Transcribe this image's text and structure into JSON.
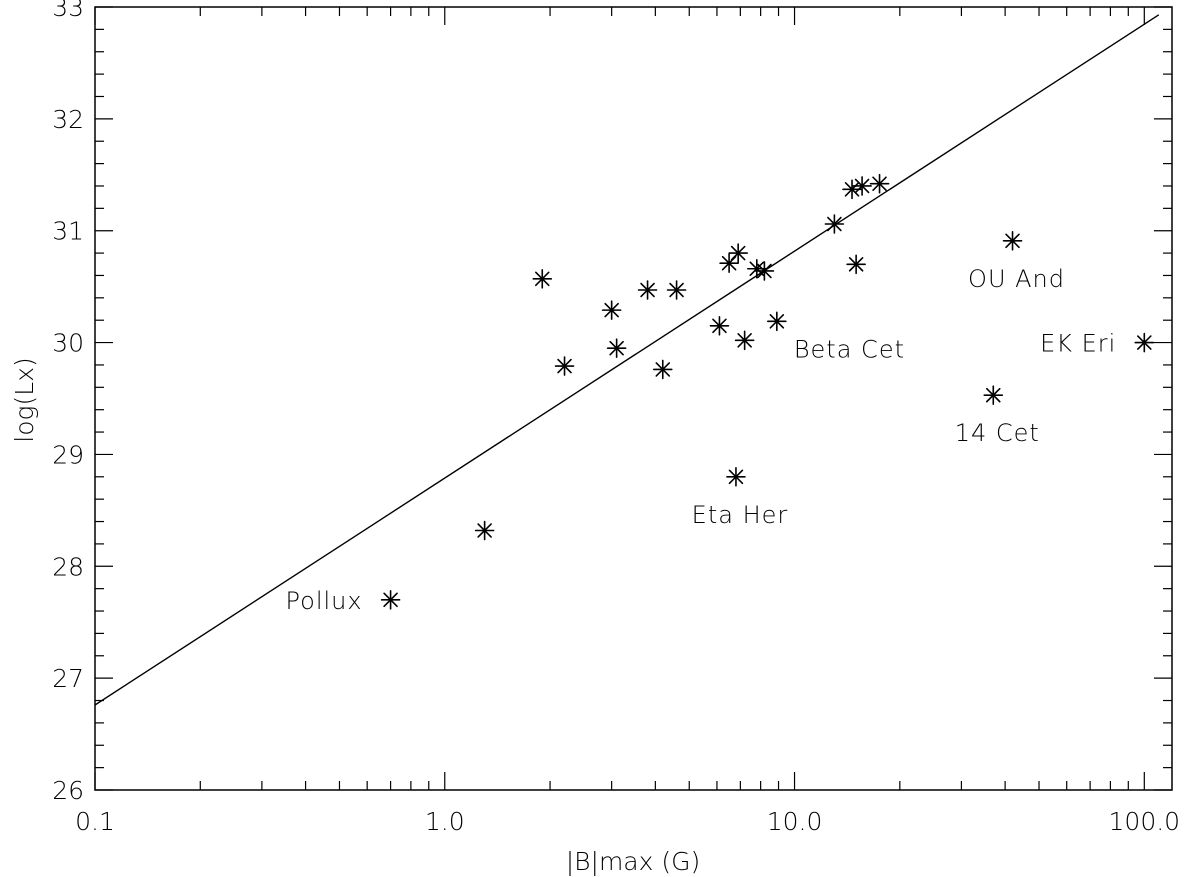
{
  "chart_data": {
    "type": "scatter",
    "title": "",
    "xlabel": "|B|max (G)",
    "ylabel": "log(Lx)",
    "xscale": "log",
    "xlim": [
      0.1,
      120
    ],
    "ylim": [
      26,
      33
    ],
    "grid": false,
    "legend": "none",
    "marker": "asterisk",
    "color": "#000000",
    "x_ticks": [
      {
        "value": 0.1,
        "label": "0.1"
      },
      {
        "value": 1,
        "label": "1.0"
      },
      {
        "value": 10,
        "label": "10.0"
      },
      {
        "value": 100,
        "label": "100.0"
      }
    ],
    "y_ticks": [
      {
        "value": 26,
        "label": "26"
      },
      {
        "value": 27,
        "label": "27"
      },
      {
        "value": 28,
        "label": "28"
      },
      {
        "value": 29,
        "label": "29"
      },
      {
        "value": 30,
        "label": "30"
      },
      {
        "value": 31,
        "label": "31"
      },
      {
        "value": 32,
        "label": "32"
      },
      {
        "value": 33,
        "label": "33"
      }
    ],
    "points": [
      {
        "x": 0.7,
        "y": 27.7,
        "label": "Pollux",
        "label_pos": "left"
      },
      {
        "x": 1.3,
        "y": 28.32,
        "label": ""
      },
      {
        "x": 1.9,
        "y": 30.57,
        "label": ""
      },
      {
        "x": 2.2,
        "y": 29.79,
        "label": ""
      },
      {
        "x": 3.0,
        "y": 30.29,
        "label": ""
      },
      {
        "x": 3.1,
        "y": 29.95,
        "label": ""
      },
      {
        "x": 3.8,
        "y": 30.47,
        "label": ""
      },
      {
        "x": 4.2,
        "y": 29.76,
        "label": ""
      },
      {
        "x": 4.6,
        "y": 30.47,
        "label": ""
      },
      {
        "x": 6.1,
        "y": 30.15,
        "label": ""
      },
      {
        "x": 6.5,
        "y": 30.71,
        "label": ""
      },
      {
        "x": 6.8,
        "y": 28.8,
        "label": "Eta Her",
        "label_pos": "below"
      },
      {
        "x": 6.9,
        "y": 30.8,
        "label": ""
      },
      {
        "x": 7.2,
        "y": 30.02,
        "label": ""
      },
      {
        "x": 7.8,
        "y": 30.66,
        "label": ""
      },
      {
        "x": 8.2,
        "y": 30.64,
        "label": ""
      },
      {
        "x": 8.9,
        "y": 30.19,
        "label": "Beta Cet",
        "label_pos": "below-right"
      },
      {
        "x": 13.0,
        "y": 31.06,
        "label": ""
      },
      {
        "x": 14.6,
        "y": 31.37,
        "label": ""
      },
      {
        "x": 15.0,
        "y": 30.7,
        "label": ""
      },
      {
        "x": 15.6,
        "y": 31.4,
        "label": ""
      },
      {
        "x": 17.5,
        "y": 31.42,
        "label": ""
      },
      {
        "x": 37.0,
        "y": 29.53,
        "label": "14 Cet",
        "label_pos": "below"
      },
      {
        "x": 42.0,
        "y": 30.91,
        "label": "OU And",
        "label_pos": "below"
      },
      {
        "x": 100.0,
        "y": 30.0,
        "label": "EK Eri",
        "label_pos": "left"
      }
    ],
    "fit_line": {
      "x": [
        0.1,
        110
      ],
      "y": [
        26.76,
        32.93
      ]
    }
  }
}
